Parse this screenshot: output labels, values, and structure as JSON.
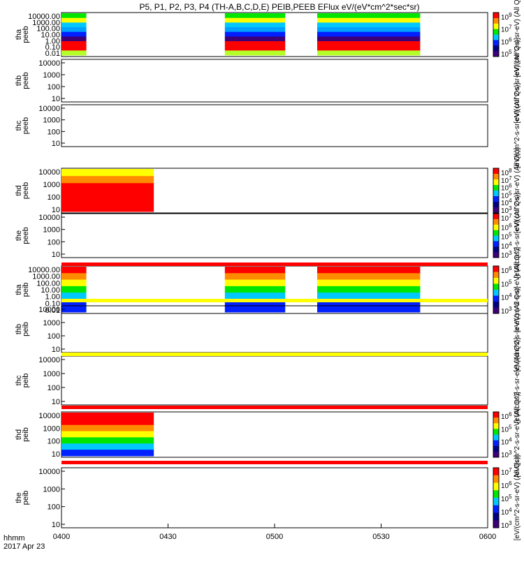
{
  "chart_data": {
    "type": "heatmap",
    "title": "P5, P1, P2, P3, P4 (TH-A,B,C,D,E) PEIB,PEEB EFlux eV/(eV*cm^2*sec*sr)",
    "time_axis": {
      "label": "hhmm",
      "date": "2017 Apr 23",
      "range": [
        "0400",
        "0600"
      ],
      "tick_labels": [
        "0400",
        "0430",
        "0500",
        "0530",
        "0600"
      ]
    },
    "panels": [
      {
        "id": "tha_peeb",
        "label_lines": [
          "tha",
          "peeb"
        ],
        "ytick_labels": [
          "10000.00",
          "1000.00",
          "100.00",
          "10.00",
          "1.00",
          "0.10",
          "0.01"
        ],
        "yscale": "log",
        "ylim": [
          0.01,
          20000
        ],
        "colorbar": {
          "label": "eV/(cm^2-s-sr-eV) (All Qs)",
          "ticks": [
            "10^9",
            "10^7",
            "10^6",
            "10^5"
          ]
        },
        "data_intervals": [
          [
            "0400",
            "0407"
          ],
          [
            "0446",
            "0503"
          ],
          [
            "0512",
            "0541"
          ]
        ]
      },
      {
        "id": "thb_peeb",
        "label_lines": [
          "thb",
          "peeb"
        ],
        "ytick_labels": [
          "10000",
          "1000",
          "100",
          "10"
        ],
        "yscale": "log",
        "ylim": [
          5,
          20000
        ],
        "colorbar": {
          "label": "eV/(cm^2-s-sr-eV) (All Qs)",
          "ticks": []
        },
        "data_intervals": []
      },
      {
        "id": "thc_peeb",
        "label_lines": [
          "thc",
          "peeb"
        ],
        "ytick_labels": [
          "10000",
          "1000",
          "100",
          "10"
        ],
        "yscale": "log",
        "ylim": [
          5,
          20000
        ],
        "colorbar": {
          "label": "eV/(cm^2-s-sr-eV) (All Qs)",
          "ticks": []
        },
        "data_intervals": []
      },
      {
        "id": "thd_peeb",
        "label_lines": [
          "thd",
          "peeb"
        ],
        "ytick_labels": [
          "10000",
          "1000",
          "100",
          "10"
        ],
        "yscale": "log",
        "ylim": [
          5,
          20000
        ],
        "colorbar": {
          "label": "eV/(cm^2-s-sr-eV) (All Qs)",
          "ticks": [
            "10^8",
            "10^7",
            "10^6",
            "10^5",
            "10^4",
            "10^3"
          ]
        },
        "data_intervals": [
          [
            "0400",
            "0426"
          ]
        ]
      },
      {
        "id": "the_peeb",
        "label_lines": [
          "the",
          "peeb"
        ],
        "ytick_labels": [
          "10000",
          "1000",
          "100",
          "10"
        ],
        "yscale": "log",
        "ylim": [
          5,
          20000
        ],
        "colorbar": {
          "label": "eV/(cm^2-s-sr-eV) (All Qs)",
          "ticks": [
            "10^7",
            "10^6",
            "10^5",
            "10^4",
            "10^3"
          ]
        },
        "data_intervals": []
      },
      {
        "id": "tha_peib",
        "label_lines": [
          "tha",
          "peib"
        ],
        "ytick_labels": [
          "10000.00",
          "1000.00",
          "100.00",
          "10.00",
          "1.00",
          "0.10",
          "0.01"
        ],
        "yscale": "log",
        "ylim": [
          0.01,
          20000
        ],
        "colorbar": {
          "label": "eV/(cm^2-s-sr-eV) (All Qs)",
          "ticks": [
            "10^6",
            "10^5",
            "10^4",
            "10^3"
          ]
        },
        "data_intervals": [
          [
            "0400",
            "0407"
          ],
          [
            "0446",
            "0503"
          ],
          [
            "0512",
            "0541"
          ]
        ]
      },
      {
        "id": "thb_peib",
        "label_lines": [
          "thb",
          "peib"
        ],
        "ytick_labels": [
          "10000",
          "1000",
          "100",
          "10"
        ],
        "yscale": "log",
        "ylim": [
          5,
          20000
        ],
        "colorbar": {
          "label": "eV/(cm^2-s-sr-eV) (All Qs)",
          "ticks": []
        },
        "data_intervals": []
      },
      {
        "id": "thc_peib",
        "label_lines": [
          "thc",
          "peib"
        ],
        "ytick_labels": [
          "10000",
          "1000",
          "100",
          "10"
        ],
        "yscale": "log",
        "ylim": [
          5,
          20000
        ],
        "colorbar": {
          "label": "eV/(cm^2-s-sr-eV) (All Qs)",
          "ticks": []
        },
        "data_intervals": []
      },
      {
        "id": "thd_peib",
        "label_lines": [
          "thd",
          "peib"
        ],
        "ytick_labels": [
          "10000",
          "1000",
          "100",
          "10"
        ],
        "yscale": "log",
        "ylim": [
          5,
          20000
        ],
        "colorbar": {
          "label": "eV/(cm^2-s-sr-eV) (All Qs)",
          "ticks": [
            "10^6",
            "10^5",
            "10^4",
            "10^3"
          ]
        },
        "data_intervals": [
          [
            "0400",
            "0426"
          ]
        ]
      },
      {
        "id": "the_peib",
        "label_lines": [
          "the",
          "peib"
        ],
        "ytick_labels": [
          "10000",
          "1000",
          "100",
          "10"
        ],
        "yscale": "log",
        "ylim": [
          5,
          20000
        ],
        "colorbar": {
          "label": "eV/(cm^2-s-sr-eV) (All Qs)",
          "ticks": [
            "10^7",
            "10^6",
            "10^5",
            "10^4",
            "10^3"
          ]
        },
        "data_intervals": []
      }
    ],
    "flag_bars": [
      {
        "after_panel": 5,
        "color": "#ff0000"
      },
      {
        "after_panel": 6,
        "color": "#ffff00"
      },
      {
        "after_panel": 7,
        "color": "#ffff00"
      },
      {
        "after_panel": 8,
        "color": "#ff0000"
      },
      {
        "after_panel": 9,
        "color": "#ff0000"
      }
    ],
    "colors": {
      "red": "#ff0000",
      "orange": "#ff8c00",
      "yellow": "#ffff00",
      "yellowgreen": "#b4ff28",
      "green": "#00e600",
      "cyan": "#00c8ff",
      "deepskyblue": "#00a0ff",
      "blue": "#0020ff",
      "darkblue": "#000080",
      "purple": "#3c0078",
      "lightblue": "#3cc8ff",
      "black": "#000000"
    }
  }
}
